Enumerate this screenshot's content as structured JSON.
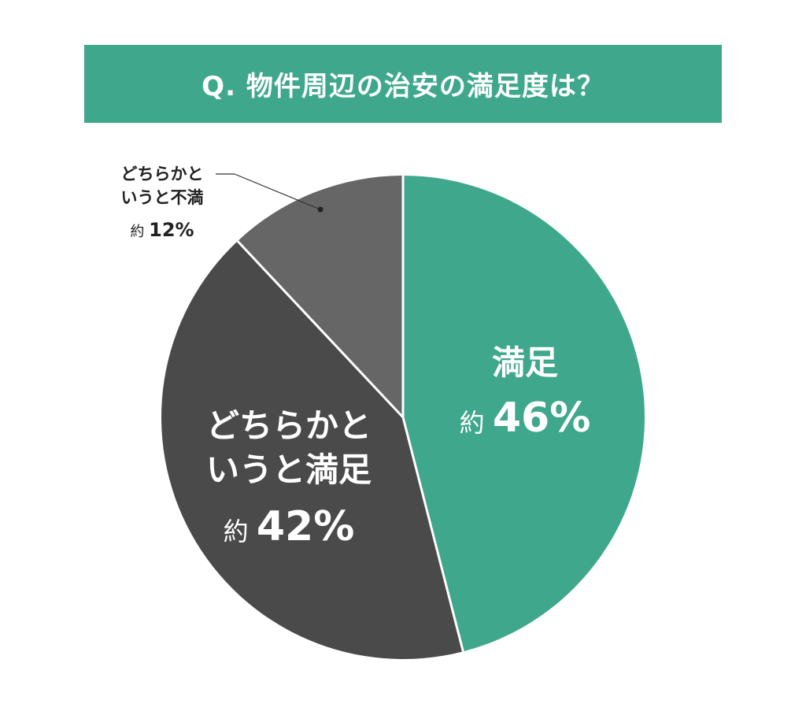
{
  "title": "Q. 物件周辺の治安の満足度は？",
  "colors": {
    "banner": "#3fa88c",
    "satisfied": "#3fa88c",
    "somewhat_satisfied": "#4a4a4a",
    "somewhat_dissatisfied": "#666666",
    "divider": "#ffffff",
    "text_light": "#ffffff",
    "text_dark": "#222222"
  },
  "chart_data": {
    "type": "pie",
    "slices": [
      {
        "label_lines": [
          "満足"
        ],
        "prefix": "約",
        "value": 46,
        "value_text": "46%",
        "color": "#3fa88c"
      },
      {
        "label_lines": [
          "どちらかと",
          "いうと満足"
        ],
        "prefix": "約",
        "value": 42,
        "value_text": "42%",
        "color": "#4a4a4a"
      },
      {
        "label_lines": [
          "どちらかと",
          "いうと不満"
        ],
        "prefix": "約",
        "value": 12,
        "value_text": "12%",
        "color": "#666666"
      }
    ],
    "start": "12 o'clock",
    "direction": "clockwise"
  }
}
